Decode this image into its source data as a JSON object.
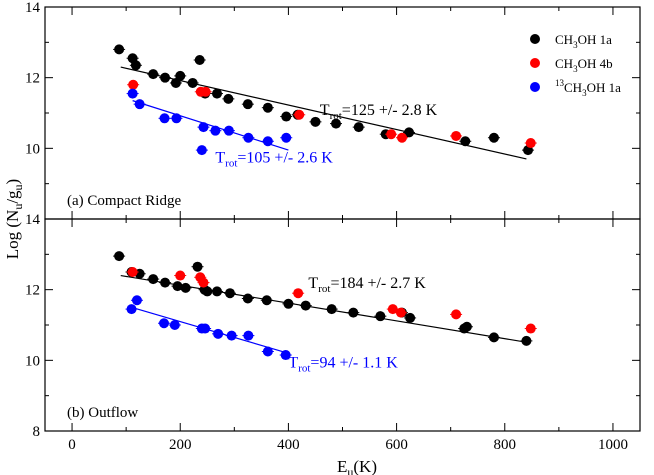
{
  "chart_data": [
    {
      "type": "scatter",
      "panel_label": "(a) Compact Ridge",
      "xlim": [
        -50,
        1050
      ],
      "ylim": [
        8,
        14
      ],
      "x_ticks": [
        0,
        200,
        400,
        600,
        800,
        1000
      ],
      "y_ticks": [
        8,
        10,
        12,
        14
      ],
      "y_tick_labels": [
        "",
        "10",
        "12",
        "14"
      ],
      "legend": {
        "placement": "top-right",
        "entries": [
          {
            "series": 0,
            "label": "CH",
            "sub": "3",
            "rest": "OH 1a"
          },
          {
            "series": 1,
            "label": "CH",
            "sub": "3",
            "rest": "OH 4b"
          },
          {
            "series": 2,
            "sup": "13",
            "label": "CH",
            "sub": "3",
            "rest": "OH 1a"
          }
        ]
      },
      "series": [
        {
          "color": "#000000",
          "x": [
            87,
            112,
            118,
            150,
            172,
            192,
            200,
            223,
            236,
            246,
            268,
            289,
            325,
            362,
            396,
            417,
            450,
            488,
            530,
            580,
            623,
            727,
            780,
            843
          ],
          "y": [
            12.8,
            12.55,
            12.35,
            12.1,
            12.0,
            11.85,
            12.05,
            11.85,
            12.5,
            11.55,
            11.55,
            11.4,
            11.25,
            11.15,
            10.9,
            10.95,
            10.75,
            10.7,
            10.6,
            10.4,
            10.45,
            10.2,
            10.3,
            9.95
          ],
          "fit": {
            "x": [
              90,
              840
            ],
            "y": [
              12.3,
              9.7
            ]
          }
        },
        {
          "color": "#ff0000",
          "x": [
            113,
            238,
            247,
            420,
            590,
            610,
            710,
            848
          ],
          "y": [
            11.8,
            11.6,
            11.6,
            10.95,
            10.4,
            10.3,
            10.35,
            10.15
          ]
        },
        {
          "color": "#0000ff",
          "x": [
            112,
            125,
            171,
            193,
            240,
            243,
            265,
            290,
            326,
            362,
            396
          ],
          "y": [
            11.55,
            11.25,
            10.85,
            10.85,
            9.95,
            10.6,
            10.5,
            10.5,
            10.3,
            10.2,
            10.3
          ],
          "fit": {
            "x": [
              112,
              400
            ],
            "y": [
              11.35,
              9.95
            ]
          }
        }
      ],
      "annotations": [
        {
          "text_main": "T",
          "text_sub": "rot",
          "text_rest": "=125 +/- 2.8 K",
          "color": "#000000",
          "x": 458,
          "y": 10.95
        },
        {
          "text_main": "T",
          "text_sub": "rot",
          "text_rest": "=105 +/- 2.6 K",
          "color": "#0000ff",
          "x": 265,
          "y": 9.6
        }
      ]
    },
    {
      "type": "scatter",
      "panel_label": "(b) Outflow",
      "xlim": [
        -50,
        1050
      ],
      "ylim": [
        8,
        14
      ],
      "x_ticks": [
        0,
        200,
        400,
        600,
        800,
        1000
      ],
      "y_ticks": [
        8,
        10,
        12,
        14
      ],
      "y_tick_labels": [
        "8",
        "10",
        "12",
        "14"
      ],
      "x_tick_labels": [
        "0",
        "200",
        "400",
        "600",
        "800",
        "1000"
      ],
      "series": [
        {
          "color": "#000000",
          "x": [
            87,
            110,
            125,
            150,
            172,
            195,
            210,
            232,
            245,
            250,
            268,
            292,
            325,
            360,
            400,
            432,
            480,
            520,
            570,
            610,
            625,
            725,
            730,
            780,
            840
          ],
          "y": [
            12.95,
            12.5,
            12.45,
            12.3,
            12.2,
            12.1,
            12.05,
            12.65,
            12.0,
            11.95,
            11.95,
            11.9,
            11.75,
            11.7,
            11.6,
            11.55,
            11.45,
            11.35,
            11.25,
            11.35,
            11.2,
            10.9,
            10.95,
            10.65,
            10.55
          ],
          "fit": {
            "x": [
              90,
              845
            ],
            "y": [
              12.4,
              10.5
            ]
          }
        },
        {
          "color": "#ff0000",
          "x": [
            112,
            200,
            237,
            243,
            418,
            593,
            608,
            710,
            848
          ],
          "y": [
            12.5,
            12.4,
            12.35,
            12.2,
            11.9,
            11.45,
            11.35,
            11.3,
            10.9
          ],
          "fit": null
        },
        {
          "color": "#0000ff",
          "x": [
            110,
            120,
            170,
            190,
            240,
            246,
            270,
            295,
            326,
            362,
            395
          ],
          "y": [
            11.45,
            11.7,
            11.05,
            11.0,
            10.9,
            10.9,
            10.75,
            10.7,
            10.7,
            10.25,
            10.15
          ],
          "fit": {
            "x": [
              110,
              400
            ],
            "y": [
              11.5,
              10.2
            ]
          }
        }
      ],
      "annotations": [
        {
          "text_main": "T",
          "text_sub": "rot",
          "text_rest": "=184 +/- 2.7 K",
          "color": "#000000",
          "x": 437,
          "y": 12.05
        },
        {
          "text_main": "T",
          "text_sub": "rot",
          "text_rest": "=94 +/- 1.1 K",
          "color": "#0000ff",
          "x": 400,
          "y": 9.8
        }
      ]
    }
  ],
  "axes": {
    "xlabel_main": "E",
    "xlabel_sub": "u",
    "xlabel_rest": "(K)",
    "ylabel_main": "Log (N",
    "ylabel_sub1": "u",
    "ylabel_mid": "/g",
    "ylabel_sub2": "u",
    "ylabel_rest": ")"
  }
}
